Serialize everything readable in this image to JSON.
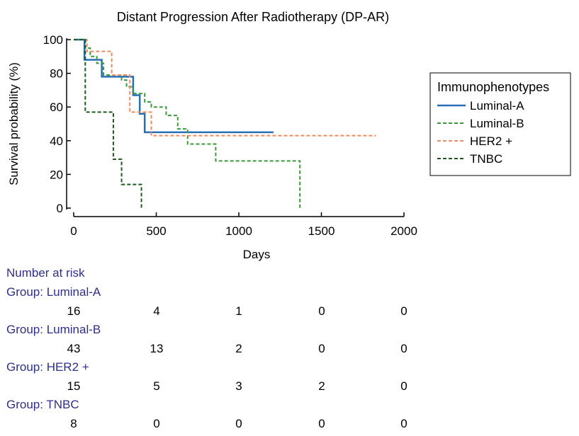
{
  "chart_data": {
    "type": "line",
    "title": "Distant Progression After Radiotherapy (DP-AR)",
    "xlabel": "Days",
    "ylabel": "Survival probability (%)",
    "xlim": [
      0,
      2000
    ],
    "ylim": [
      0,
      100
    ],
    "xticks": [
      "0",
      "500",
      "1000",
      "1500",
      "2000"
    ],
    "yticks": [
      "0",
      "20",
      "40",
      "60",
      "80",
      "100"
    ],
    "grid": false,
    "legend": {
      "title": "Immunophenotypes",
      "placement": "right"
    },
    "series": [
      {
        "name": "Luminal-A",
        "color": "#2a6fb5",
        "style": "solid",
        "x": [
          0,
          50,
          65,
          150,
          170,
          340,
          360,
          400,
          430,
          1210
        ],
        "y": [
          100,
          100,
          88,
          88,
          78,
          78,
          67,
          56,
          45,
          45
        ]
      },
      {
        "name": "Luminal-B",
        "color": "#3a9a3a",
        "style": "dashed",
        "x": [
          0,
          50,
          70,
          100,
          140,
          180,
          290,
          320,
          360,
          430,
          470,
          560,
          630,
          690,
          860,
          1370,
          1370
        ],
        "y": [
          100,
          100,
          95,
          90,
          86,
          79,
          76,
          72,
          68,
          63,
          60,
          55,
          47,
          38,
          28,
          28,
          0
        ]
      },
      {
        "name": "HER2 +",
        "color": "#f08a5d",
        "style": "dashed",
        "x": [
          0,
          60,
          80,
          230,
          340,
          470,
          1830
        ],
        "y": [
          100,
          100,
          93,
          79,
          57,
          43,
          43
        ]
      },
      {
        "name": "TNBC",
        "color": "#1f5a1f",
        "style": "dashed",
        "x": [
          0,
          50,
          70,
          210,
          240,
          290,
          410,
          410
        ],
        "y": [
          100,
          100,
          57,
          57,
          29,
          14,
          14,
          0
        ]
      }
    ],
    "risk_table": {
      "header": "Number at risk",
      "groups": [
        {
          "label": "Group: Luminal-A",
          "values": [
            "16",
            "4",
            "1",
            "0",
            "0"
          ]
        },
        {
          "label": "Group: Luminal-B",
          "values": [
            "43",
            "13",
            "2",
            "0",
            "0"
          ]
        },
        {
          "label": "Group: HER2 +",
          "values": [
            "15",
            "5",
            "3",
            "2",
            "0"
          ]
        },
        {
          "label": "Group: TNBC",
          "values": [
            "8",
            "0",
            "0",
            "0",
            "0"
          ]
        }
      ]
    }
  }
}
